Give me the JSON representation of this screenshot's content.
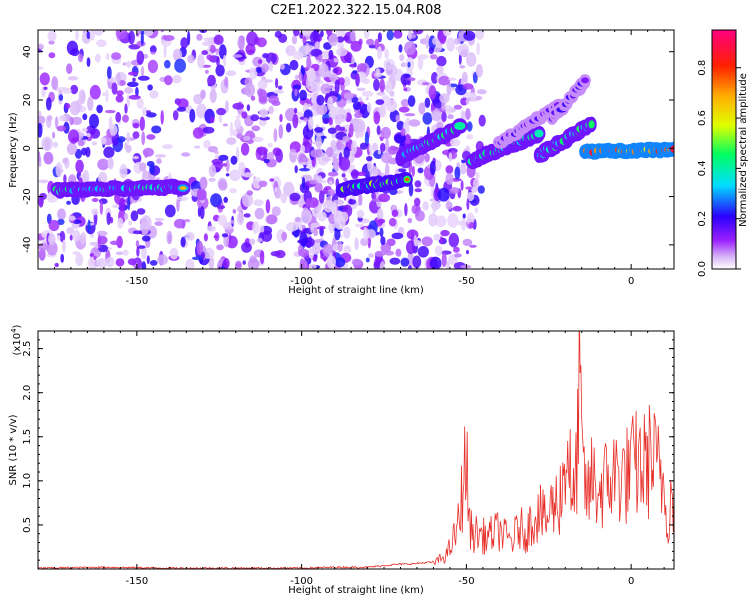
{
  "title": "C2E1.2022.322.15.04.R08",
  "chart_data": [
    {
      "type": "heatmap",
      "xlabel": "Height of straight line (km)",
      "ylabel": "Frequency (Hz)",
      "xlim": [
        -180,
        13
      ],
      "ylim": [
        -50,
        49
      ],
      "xticks": [
        -150,
        -100,
        -50,
        0
      ],
      "yticks": [
        -40,
        -20,
        0,
        20,
        40
      ],
      "colorbar": {
        "label": "Normalized spectral amplitude",
        "range": [
          0,
          0.95
        ],
        "ticks": [
          0.0,
          0.2,
          0.4,
          0.6,
          0.8
        ],
        "tick_labels": [
          "0.0",
          "0.2",
          "0.4",
          "0.6",
          "0.8"
        ]
      },
      "features": [
        {
          "type": "band",
          "x": [
            -174,
            -136
          ],
          "y": [
            -17.5,
            -16
          ],
          "amp": 0.45,
          "width": 2.2
        },
        {
          "type": "band",
          "x": [
            -88,
            -68
          ],
          "y": [
            -17,
            -13
          ],
          "amp": 0.55,
          "width": 2.2
        },
        {
          "type": "band",
          "x": [
            -70,
            -52
          ],
          "y": [
            -4,
            9
          ],
          "amp": 0.45,
          "width": 2.4
        },
        {
          "type": "band",
          "x": [
            -48,
            -28
          ],
          "y": [
            -5,
            6
          ],
          "amp": 0.45,
          "width": 2.4
        },
        {
          "type": "band",
          "x": [
            -28,
            -12
          ],
          "y": [
            -3,
            10
          ],
          "amp": 0.45,
          "width": 2.4
        },
        {
          "type": "band",
          "x": [
            -40,
            -22
          ],
          "y": [
            2,
            18
          ],
          "amp": 0.2,
          "width": 1.8
        },
        {
          "type": "band",
          "x": [
            -24,
            -14
          ],
          "y": [
            12,
            28
          ],
          "amp": 0.2,
          "width": 1.8
        },
        {
          "type": "band",
          "x": [
            -14,
            13
          ],
          "y": [
            -1.5,
            -0.5
          ],
          "amp": 0.85,
          "width": 2.2
        }
      ]
    },
    {
      "type": "line",
      "xlabel": "Height of straight line (km)",
      "ylabel": "SNR (10 * v/v)",
      "yscale_label": "(x10",
      "yscale_exp": "4",
      "yscale_close": ")",
      "xlim": [
        -180,
        13
      ],
      "ylim": [
        0,
        2.7
      ],
      "xticks": [
        -150,
        -100,
        -50,
        0
      ],
      "yticks": [
        0.5,
        1.0,
        1.5,
        2.0,
        2.5
      ],
      "ytick_labels": [
        "0.5",
        "1.0",
        "1.5",
        "2.0",
        "2.5"
      ],
      "series": [
        {
          "color": "#e8302a",
          "x": [
            -180,
            -160,
            -140,
            -120,
            -100,
            -90,
            -80,
            -72,
            -66,
            -60,
            -56,
            -54,
            -52,
            -51,
            -50,
            -49,
            -48,
            -46,
            -44,
            -42,
            -40,
            -38,
            -36,
            -34,
            -32,
            -30,
            -28,
            -26,
            -24,
            -22,
            -21,
            -20,
            -19,
            -18,
            -17,
            -16,
            -15.5,
            -15,
            -14,
            -13,
            -12,
            -10,
            -8,
            -6,
            -4,
            -2,
            0,
            2,
            4,
            6,
            8,
            10,
            11,
            12,
            13
          ],
          "y": [
            0.01,
            0.02,
            0.01,
            0.01,
            0.01,
            0.02,
            0.02,
            0.05,
            0.06,
            0.08,
            0.2,
            0.4,
            0.7,
            1.3,
            1.5,
            0.6,
            0.5,
            0.5,
            0.45,
            0.5,
            0.55,
            0.45,
            0.4,
            0.6,
            0.5,
            0.7,
            0.85,
            0.65,
            0.9,
            0.95,
            1.2,
            1.45,
            1.9,
            0.8,
            1.1,
            2.2,
            2.75,
            1.5,
            1.2,
            1.0,
            1.3,
            1.1,
            1.2,
            1.3,
            1.35,
            1.3,
            1.4,
            1.5,
            1.45,
            1.6,
            1.4,
            1.2,
            0.7,
            1.0,
            1.0
          ]
        }
      ]
    }
  ]
}
